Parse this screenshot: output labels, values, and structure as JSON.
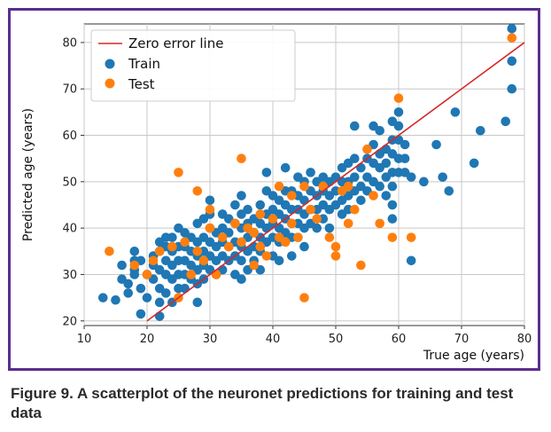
{
  "caption": "Figure 9. A scatterplot of the neuronet predictions for training and test data",
  "colors": {
    "frame": "#5b2d8e",
    "train": "#1f77b4",
    "test": "#ff7f0e",
    "zero_line": "#d62728"
  },
  "chart_data": {
    "type": "scatter",
    "xlabel": "True age (years)",
    "ylabel": "Predicted age (years)",
    "xlim": [
      10,
      80
    ],
    "ylim": [
      19,
      84
    ],
    "xticks": [
      10,
      20,
      30,
      40,
      50,
      60,
      70,
      80
    ],
    "yticks": [
      20,
      30,
      40,
      50,
      60,
      70,
      80
    ],
    "grid": true,
    "legend_position": "top-left",
    "legend": [
      "Zero error line",
      "Train",
      "Test"
    ],
    "zero_error_line": {
      "name": "Zero error line",
      "x": [
        20,
        80
      ],
      "y": [
        20,
        80
      ]
    },
    "series": [
      {
        "name": "Train",
        "points": [
          [
            13,
            25
          ],
          [
            15,
            24.5
          ],
          [
            16,
            32
          ],
          [
            16,
            29
          ],
          [
            17,
            28
          ],
          [
            17,
            26
          ],
          [
            18,
            33
          ],
          [
            18,
            31
          ],
          [
            18,
            30
          ],
          [
            18,
            35
          ],
          [
            19,
            33
          ],
          [
            19,
            27
          ],
          [
            19,
            21.5
          ],
          [
            20,
            30
          ],
          [
            20,
            25
          ],
          [
            21,
            34
          ],
          [
            21,
            32
          ],
          [
            21,
            29
          ],
          [
            22,
            37
          ],
          [
            22,
            35
          ],
          [
            22,
            31
          ],
          [
            22,
            27
          ],
          [
            22,
            24
          ],
          [
            22,
            21
          ],
          [
            23,
            38
          ],
          [
            23,
            36
          ],
          [
            23,
            33
          ],
          [
            23,
            30
          ],
          [
            23,
            26
          ],
          [
            24,
            38
          ],
          [
            24,
            35
          ],
          [
            24,
            32
          ],
          [
            24,
            29
          ],
          [
            24,
            24
          ],
          [
            25,
            40
          ],
          [
            25,
            36
          ],
          [
            25,
            33
          ],
          [
            25,
            30
          ],
          [
            25,
            27
          ],
          [
            26,
            39
          ],
          [
            26,
            36
          ],
          [
            26,
            33
          ],
          [
            26,
            30
          ],
          [
            26,
            27
          ],
          [
            27,
            38
          ],
          [
            27,
            35
          ],
          [
            27,
            32
          ],
          [
            27,
            29
          ],
          [
            28,
            41
          ],
          [
            28,
            37
          ],
          [
            28,
            34
          ],
          [
            28,
            31
          ],
          [
            28,
            28
          ],
          [
            28,
            24
          ],
          [
            29,
            42
          ],
          [
            29,
            38
          ],
          [
            29,
            35
          ],
          [
            29,
            32
          ],
          [
            29,
            29
          ],
          [
            30,
            46
          ],
          [
            30,
            43
          ],
          [
            30,
            40
          ],
          [
            30,
            37
          ],
          [
            30,
            34
          ],
          [
            30,
            31
          ],
          [
            31,
            39
          ],
          [
            31,
            36
          ],
          [
            31,
            33
          ],
          [
            31,
            30
          ],
          [
            32,
            43
          ],
          [
            32,
            40
          ],
          [
            32,
            37
          ],
          [
            32,
            34
          ],
          [
            32,
            31
          ],
          [
            33,
            42
          ],
          [
            33,
            39
          ],
          [
            33,
            36
          ],
          [
            33,
            33
          ],
          [
            34,
            45
          ],
          [
            34,
            41
          ],
          [
            34,
            37
          ],
          [
            34,
            34
          ],
          [
            34,
            30
          ],
          [
            35,
            47
          ],
          [
            35,
            43
          ],
          [
            35,
            40
          ],
          [
            35,
            36
          ],
          [
            35,
            33
          ],
          [
            35,
            29
          ],
          [
            36,
            44
          ],
          [
            36,
            41
          ],
          [
            36,
            38
          ],
          [
            36,
            35
          ],
          [
            36,
            31
          ],
          [
            37,
            42
          ],
          [
            37,
            39
          ],
          [
            37,
            36
          ],
          [
            37,
            33
          ],
          [
            38,
            45
          ],
          [
            38,
            41
          ],
          [
            38,
            38
          ],
          [
            38,
            35
          ],
          [
            38,
            31
          ],
          [
            39,
            52
          ],
          [
            39,
            48
          ],
          [
            39,
            43
          ],
          [
            39,
            40
          ],
          [
            39,
            37
          ],
          [
            40,
            47
          ],
          [
            40,
            44
          ],
          [
            40,
            41
          ],
          [
            40,
            38
          ],
          [
            40,
            34
          ],
          [
            41,
            46
          ],
          [
            41,
            43
          ],
          [
            41,
            40
          ],
          [
            41,
            37
          ],
          [
            41,
            33
          ],
          [
            42,
            53
          ],
          [
            42,
            48
          ],
          [
            42,
            45
          ],
          [
            42,
            42
          ],
          [
            42,
            39
          ],
          [
            43,
            48
          ],
          [
            43,
            44
          ],
          [
            43,
            41
          ],
          [
            43,
            38
          ],
          [
            43,
            34
          ],
          [
            44,
            51
          ],
          [
            44,
            47
          ],
          [
            44,
            44
          ],
          [
            44,
            41
          ],
          [
            44,
            38
          ],
          [
            45,
            50
          ],
          [
            45,
            46
          ],
          [
            45,
            43
          ],
          [
            45,
            40
          ],
          [
            45,
            36
          ],
          [
            46,
            52
          ],
          [
            46,
            48
          ],
          [
            46,
            44
          ],
          [
            46,
            41
          ],
          [
            47,
            50
          ],
          [
            47,
            47
          ],
          [
            47,
            44
          ],
          [
            47,
            40
          ],
          [
            48,
            51
          ],
          [
            48,
            48
          ],
          [
            48,
            45
          ],
          [
            48,
            42
          ],
          [
            49,
            50
          ],
          [
            49,
            47
          ],
          [
            49,
            44
          ],
          [
            49,
            40
          ],
          [
            50,
            51
          ],
          [
            50,
            48
          ],
          [
            50,
            45
          ],
          [
            51,
            53
          ],
          [
            51,
            50
          ],
          [
            51,
            46
          ],
          [
            51,
            43
          ],
          [
            52,
            54
          ],
          [
            52,
            50
          ],
          [
            52,
            47
          ],
          [
            52,
            44
          ],
          [
            53,
            62
          ],
          [
            53,
            55
          ],
          [
            53,
            51
          ],
          [
            53,
            48
          ],
          [
            54,
            53
          ],
          [
            54,
            49
          ],
          [
            54,
            46
          ],
          [
            55,
            55
          ],
          [
            55,
            51
          ],
          [
            55,
            48
          ],
          [
            56,
            62
          ],
          [
            56,
            58
          ],
          [
            56,
            54
          ],
          [
            56,
            50
          ],
          [
            57,
            61
          ],
          [
            57,
            56
          ],
          [
            57,
            53
          ],
          [
            57,
            49
          ],
          [
            58,
            57
          ],
          [
            58,
            54
          ],
          [
            58,
            51
          ],
          [
            58,
            47
          ],
          [
            59,
            63
          ],
          [
            59,
            59
          ],
          [
            59,
            56
          ],
          [
            59,
            52
          ],
          [
            59,
            49
          ],
          [
            59,
            45
          ],
          [
            59,
            42
          ],
          [
            60,
            65
          ],
          [
            60,
            62
          ],
          [
            60,
            59
          ],
          [
            60,
            55
          ],
          [
            60,
            52
          ],
          [
            61,
            58
          ],
          [
            61,
            55
          ],
          [
            61,
            52
          ],
          [
            62,
            51
          ],
          [
            62,
            33
          ],
          [
            64,
            50
          ],
          [
            66,
            58
          ],
          [
            67,
            51
          ],
          [
            68,
            48
          ],
          [
            69,
            65
          ],
          [
            72,
            54
          ],
          [
            73,
            61
          ],
          [
            77,
            63
          ],
          [
            78,
            76
          ],
          [
            78,
            70
          ],
          [
            78,
            83
          ]
        ]
      },
      {
        "name": "Test",
        "points": [
          [
            14,
            35
          ],
          [
            18,
            32
          ],
          [
            20,
            30
          ],
          [
            21,
            33
          ],
          [
            22,
            35
          ],
          [
            24,
            36
          ],
          [
            25,
            52
          ],
          [
            25,
            25
          ],
          [
            26,
            37
          ],
          [
            27,
            30
          ],
          [
            28,
            48
          ],
          [
            28,
            35
          ],
          [
            29,
            33
          ],
          [
            30,
            44
          ],
          [
            30,
            40
          ],
          [
            31,
            30
          ],
          [
            32,
            38
          ],
          [
            33,
            36
          ],
          [
            34,
            41
          ],
          [
            35,
            55
          ],
          [
            35,
            37
          ],
          [
            36,
            40
          ],
          [
            37,
            39
          ],
          [
            37,
            32
          ],
          [
            38,
            43
          ],
          [
            38,
            36
          ],
          [
            39,
            34
          ],
          [
            40,
            42
          ],
          [
            41,
            49
          ],
          [
            41,
            38
          ],
          [
            42,
            37
          ],
          [
            43,
            47
          ],
          [
            43,
            41
          ],
          [
            44,
            38
          ],
          [
            45,
            49
          ],
          [
            45,
            25
          ],
          [
            46,
            44
          ],
          [
            47,
            42
          ],
          [
            48,
            49
          ],
          [
            49,
            38
          ],
          [
            50,
            36
          ],
          [
            50,
            34
          ],
          [
            51,
            48
          ],
          [
            52,
            49
          ],
          [
            52,
            41
          ],
          [
            53,
            44
          ],
          [
            54,
            32
          ],
          [
            55,
            57
          ],
          [
            56,
            47
          ],
          [
            57,
            41
          ],
          [
            59,
            38
          ],
          [
            60,
            68
          ],
          [
            62,
            38
          ],
          [
            78,
            81
          ]
        ]
      }
    ]
  }
}
